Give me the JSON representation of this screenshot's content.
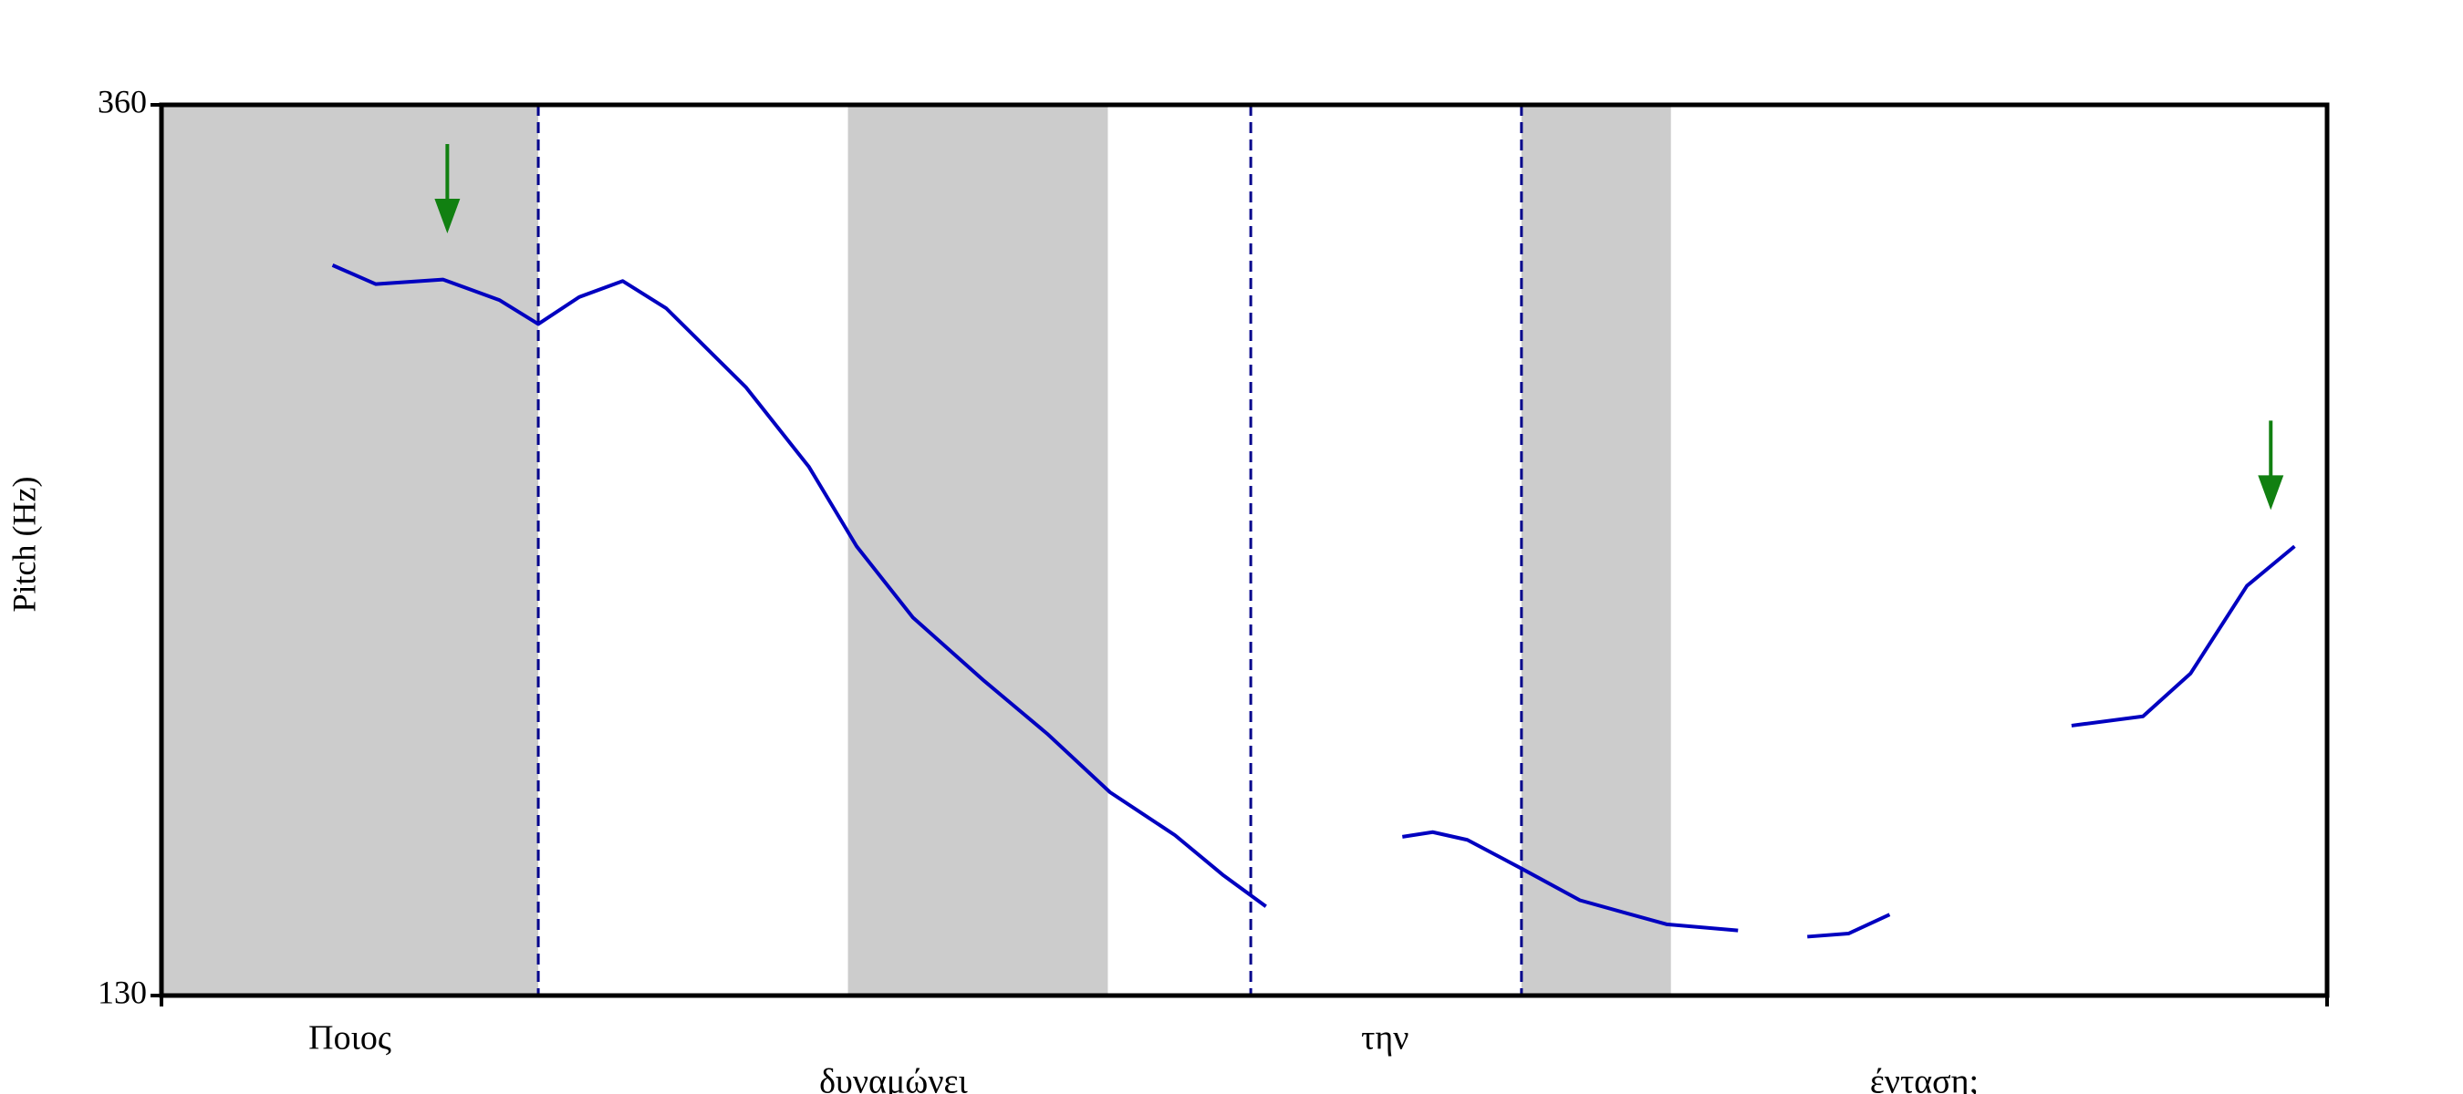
{
  "chart_data": {
    "type": "line",
    "y_label": "Pitch (Hz)",
    "ylim": [
      130,
      360
    ],
    "yticks": [
      130,
      360
    ],
    "xlim": [
      0,
      100
    ],
    "x": [
      7.9,
      9.9,
      13.0,
      15.6,
      17.4,
      19.3,
      21.3,
      23.3,
      27.0,
      29.9,
      32.1,
      34.7,
      38.0,
      40.9,
      43.8,
      46.8,
      49.0,
      51.0,
      54.0,
      57.3,
      58.7,
      60.3,
      62.8,
      65.5,
      69.5,
      72.8,
      74.5,
      76.0,
      77.9,
      79.8,
      84.0,
      88.2,
      91.5,
      93.7,
      96.3,
      98.5
    ],
    "series": [
      {
        "color": "#0000c0",
        "values": [
          318.6,
          313.7,
          314.9,
          309.6,
          303.4,
          310.4,
          314.5,
          307.5,
          287.0,
          266.5,
          246.0,
          227.6,
          211.2,
          197.6,
          182.5,
          171.4,
          161.2,
          153.0,
          null,
          171.0,
          172.2,
          170.2,
          162.8,
          154.6,
          148.4,
          146.8,
          null,
          145.2,
          146.0,
          150.9,
          null,
          199.7,
          202.1,
          213.2,
          235.8,
          246.0
        ]
      }
    ],
    "shaded_regions": [
      [
        0,
        17.4
      ],
      [
        31.7,
        43.7
      ],
      [
        62.8,
        69.7
      ]
    ],
    "shade_color": "#cccccc",
    "boundaries": [
      17.4,
      50.3,
      62.8
    ],
    "boundary_color": "#00008b",
    "words": [
      {
        "text": "Ποιος",
        "x": 8.7
      },
      {
        "text": "δυναμώνει",
        "x": 33.8
      },
      {
        "text": "την",
        "x": 56.5
      },
      {
        "text": "ένταση;",
        "x": 81.4
      }
    ],
    "arrows": [
      {
        "x": 13.2,
        "y": 326.8
      },
      {
        "x": 97.4,
        "y": 255.4
      }
    ],
    "arrow_color": "#118011"
  }
}
